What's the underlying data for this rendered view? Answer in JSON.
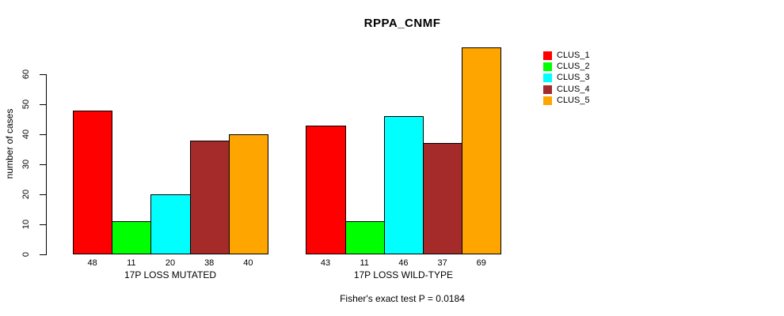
{
  "chart_data": {
    "type": "bar",
    "title": "RPPA_CNMF",
    "xlabel": "",
    "ylabel": "number of cases",
    "ylim": [
      0,
      69
    ],
    "yticks": [
      0,
      10,
      20,
      30,
      40,
      50,
      60
    ],
    "grid": false,
    "legend_position": "right",
    "series": [
      {
        "name": "CLUS_1",
        "color": "#FF0000"
      },
      {
        "name": "CLUS_2",
        "color": "#00FF00"
      },
      {
        "name": "CLUS_3",
        "color": "#00FFFF"
      },
      {
        "name": "CLUS_4",
        "color": "#A52A2A"
      },
      {
        "name": "CLUS_5",
        "color": "#FFA500"
      }
    ],
    "groups": [
      {
        "label": "17P LOSS MUTATED",
        "values": [
          48,
          11,
          20,
          38,
          40
        ]
      },
      {
        "label": "17P LOSS WILD-TYPE",
        "values": [
          43,
          11,
          46,
          37,
          69
        ]
      }
    ],
    "bar_value_labels": true,
    "annotation": "Fisher's exact test P = 0.0184"
  }
}
